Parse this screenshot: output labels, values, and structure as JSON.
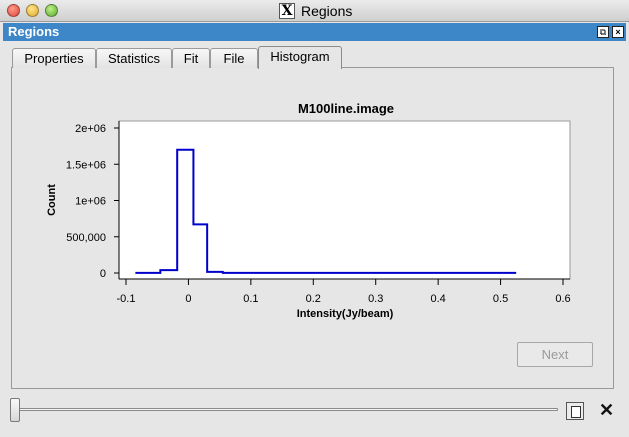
{
  "window": {
    "title": "Regions"
  },
  "dock": {
    "title": "Regions"
  },
  "tabs": [
    {
      "label": "Properties"
    },
    {
      "label": "Statistics"
    },
    {
      "label": "Fit"
    },
    {
      "label": "File"
    },
    {
      "label": "Histogram"
    }
  ],
  "active_tab": "Histogram",
  "chart_data": {
    "type": "line",
    "title": "M100line.image",
    "xlabel": "Intensity(Jy/beam)",
    "ylabel": "Count",
    "xlim": [
      -0.1,
      0.6
    ],
    "ylim": [
      0,
      2000000
    ],
    "x_ticks": [
      "-0.1",
      "0",
      "0.1",
      "0.2",
      "0.3",
      "0.4",
      "0.5",
      "0.6"
    ],
    "y_ticks": [
      "0",
      "500,000",
      "1e+06",
      "1.5e+06",
      "2e+06"
    ],
    "grid": false,
    "series": [
      {
        "color": "#0000cc",
        "step": true,
        "x": [
          -0.085,
          -0.045,
          -0.018,
          0.008,
          0.03,
          0.055,
          0.525
        ],
        "y": [
          2000,
          40000,
          1700000,
          670000,
          15000,
          2000,
          2000
        ]
      }
    ]
  },
  "buttons": {
    "next": "Next"
  },
  "slider": {
    "value": 0
  },
  "colors": {
    "dock_title": "#3d87c8",
    "series": "#0000cc"
  }
}
